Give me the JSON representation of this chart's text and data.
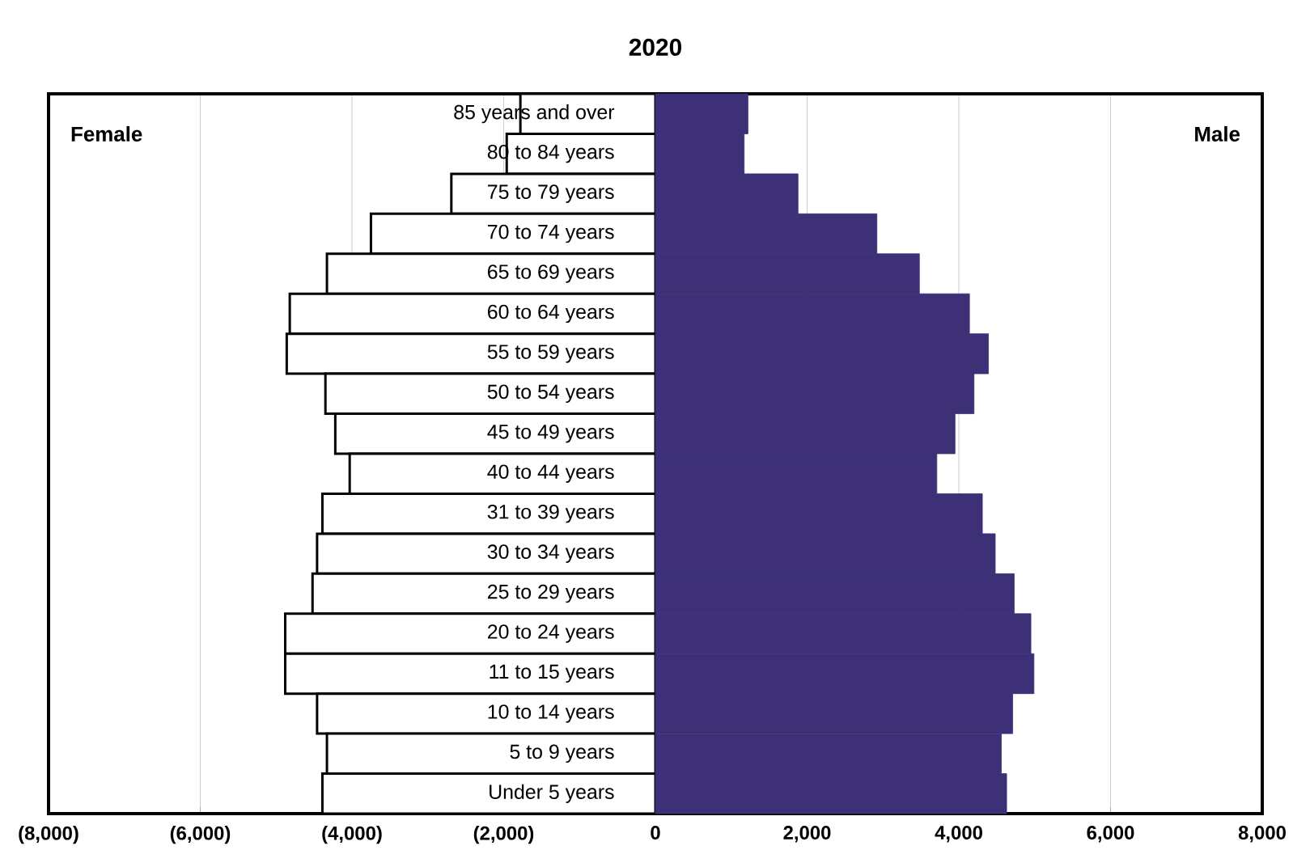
{
  "chart_data": {
    "type": "bar",
    "orientation": "horizontal",
    "title": "2020",
    "categories": [
      "85 years and over",
      "80 to 84 years",
      "75 to 79 years",
      "70 to 74 years",
      "65 to 69 years",
      "60 to 64 years",
      "55 to 59 years",
      "50 to 54 years",
      "45 to 49 years",
      "40 to 44 years",
      "31 to 39 years",
      "30 to 34 years",
      "25 to 29 years",
      "20 to 24 years",
      "11 to 15 years",
      "10 to 14 years",
      "5 to 9 years",
      "Under 5 years"
    ],
    "series": [
      {
        "color": "#ffffff",
        "values": [
          -1780,
          -1960,
          -2690,
          -3750,
          -4330,
          -4820,
          -4860,
          -4350,
          -4220,
          -4030,
          -4390,
          -4460,
          -4520,
          -4880,
          -4880,
          -4460,
          -4330,
          -4390
        ]
      },
      {
        "color": "#3d3077",
        "values": [
          1220,
          1170,
          1880,
          2920,
          3480,
          4140,
          4390,
          4200,
          3950,
          3710,
          4310,
          4480,
          4730,
          4950,
          4990,
          4710,
          4560,
          4630
        ]
      }
    ],
    "xlim": [
      -8000,
      8000
    ],
    "xticks": [
      {
        "value": -8000,
        "label": "(8,000)"
      },
      {
        "value": -6000,
        "label": "(6,000)"
      },
      {
        "value": -4000,
        "label": "(4,000)"
      },
      {
        "value": -2000,
        "label": "(2,000)"
      },
      0,
      {
        "value": 2000,
        "label": "2,000"
      },
      {
        "value": 4000,
        "label": "4,000"
      },
      {
        "value": 6000,
        "label": "6,000"
      },
      {
        "value": 8000,
        "label": "8,000"
      }
    ],
    "grid": "x",
    "stacked": true,
    "annotations": [
      "Female",
      "Male"
    ]
  }
}
